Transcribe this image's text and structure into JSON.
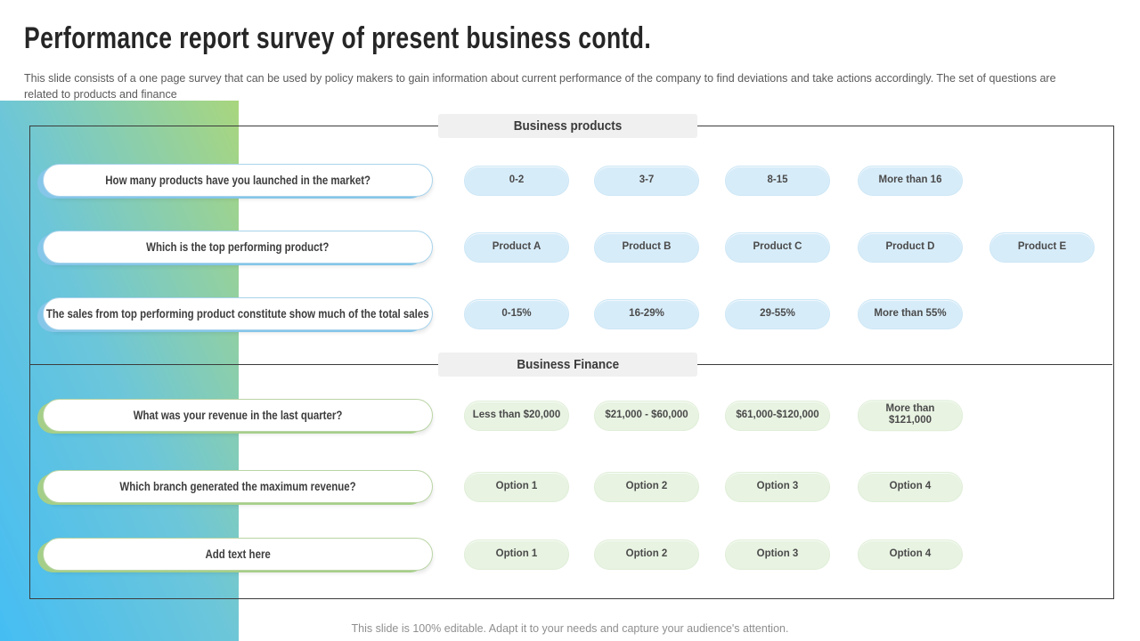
{
  "slide": {
    "title": "Performance report survey of present business contd.",
    "subtitle": "This slide consists of a one page survey that can be used by policy makers to gain information about current performance of the company to find deviations and take actions accordingly. The set of questions are related to products and finance",
    "footer": "This slide is 100% editable. Adapt it to your needs and capture your audience's attention."
  },
  "colors": {
    "gradient_blue": "#45bdf3",
    "gradient_green": "#a9d67e",
    "blue_option_bg": "#d7ecf9",
    "green_option_bg": "#e8f3e2",
    "header_bg": "#f0f0f0",
    "box_border": "#3c3c3c"
  },
  "sections": [
    {
      "id": "products",
      "header": "Business products",
      "theme": "blue",
      "rows": [
        {
          "question": "How many products have you launched in the market?",
          "options": [
            "0-2",
            "3-7",
            "8-15",
            "More than 16"
          ]
        },
        {
          "question": "Which is the top performing product?",
          "options": [
            "Product A",
            "Product B",
            "Product C",
            "Product D",
            "Product E"
          ]
        },
        {
          "question": "The sales from top performing product constitute show much of the total sales",
          "options": [
            "0-15%",
            "16-29%",
            "29-55%",
            "More than 55%"
          ]
        }
      ]
    },
    {
      "id": "finance",
      "header": "Business Finance",
      "theme": "green",
      "rows": [
        {
          "question": "What was your revenue in the last quarter?",
          "options": [
            "Less than $20,000",
            "$21,000 - $60,000",
            "$61,000-$120,000",
            "More than $121,000"
          ]
        },
        {
          "question": "Which branch generated the maximum revenue?",
          "options": [
            "Option 1",
            "Option 2",
            "Option 3",
            "Option 4"
          ]
        },
        {
          "question": "Add text here",
          "options": [
            "Option 1",
            "Option 2",
            "Option 3",
            "Option 4"
          ]
        }
      ]
    }
  ]
}
